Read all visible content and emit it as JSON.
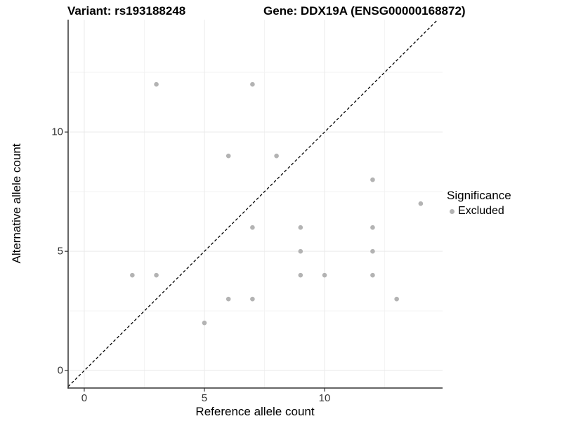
{
  "titles": {
    "variant": "Variant: rs193188248",
    "gene": "Gene: DDX19A (ENSG00000168872)"
  },
  "axes": {
    "x": {
      "label": "Reference allele count",
      "tick_labels": [
        "0",
        "5",
        "10"
      ],
      "tick_values": [
        0,
        5,
        10
      ]
    },
    "y": {
      "label": "Alternative allele count",
      "tick_labels": [
        "0",
        "5",
        "10"
      ],
      "tick_values": [
        0,
        5,
        10
      ]
    }
  },
  "legend": {
    "title": "Significance",
    "items": [
      {
        "label": "Excluded",
        "color": "#b3b3b3"
      }
    ]
  },
  "colors": {
    "point": "#b3b3b3",
    "grid_major": "#e9e9e9",
    "grid_minor": "#f3f3f3",
    "axis_line": "#333333",
    "reference_line": "#000000",
    "background": "#ffffff"
  },
  "chart_data": {
    "type": "scatter",
    "title": "Variant: rs193188248 — Gene: DDX19A (ENSG00000168872)",
    "xlabel": "Reference allele count",
    "ylabel": "Alternative allele count",
    "xlim": [
      -0.67,
      14.91
    ],
    "ylim": [
      -0.73,
      14.71
    ],
    "x_major_ticks": [
      0,
      5,
      10
    ],
    "y_major_ticks": [
      0,
      5,
      10
    ],
    "x_minor_gridlines": [
      2.5,
      7.5,
      12.5
    ],
    "y_minor_gridlines": [
      2.5,
      7.5,
      12.5
    ],
    "grid": true,
    "legend_position": "right",
    "series": [
      {
        "name": "Excluded",
        "color": "#b3b3b3",
        "points": [
          [
            3,
            12
          ],
          [
            7,
            12
          ],
          [
            6,
            9
          ],
          [
            8,
            9
          ],
          [
            12,
            8
          ],
          [
            14,
            7
          ],
          [
            7,
            6
          ],
          [
            9,
            6
          ],
          [
            12,
            6
          ],
          [
            9,
            5
          ],
          [
            12,
            5
          ],
          [
            2,
            4
          ],
          [
            3,
            4
          ],
          [
            9,
            4
          ],
          [
            10,
            4
          ],
          [
            12,
            4
          ],
          [
            6,
            3
          ],
          [
            7,
            3
          ],
          [
            13,
            3
          ],
          [
            5,
            2
          ]
        ]
      }
    ],
    "reference_line": {
      "type": "identity",
      "slope": 1,
      "intercept": 0,
      "style": "dashed",
      "color": "#000000"
    }
  }
}
